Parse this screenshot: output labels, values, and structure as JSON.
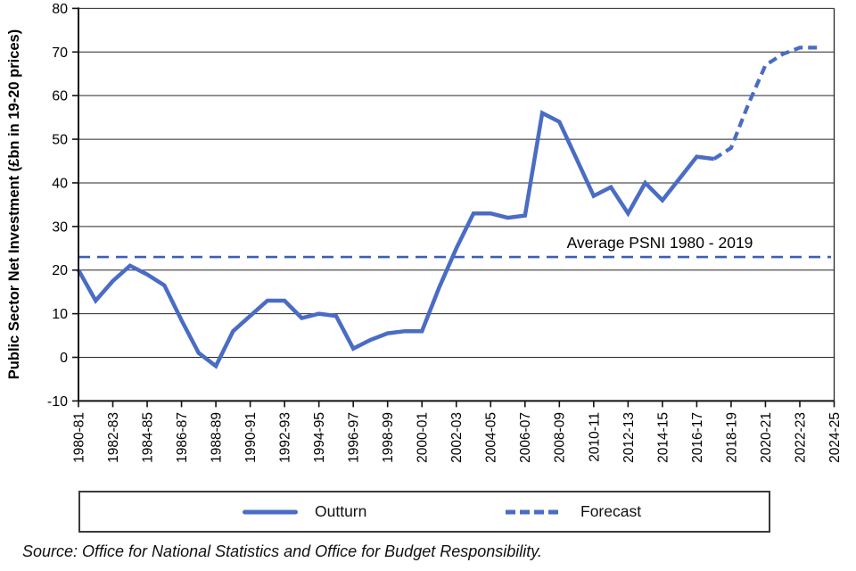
{
  "chart_data": {
    "type": "line",
    "title": "",
    "ylabel": "Public Sector Net Investment (£bn in 19-20 prices)",
    "ylim": [
      -10,
      80
    ],
    "ytick_step": 10,
    "grid": true,
    "legend_position": "bottom",
    "years": [
      "1980-81",
      "1981-82",
      "1982-83",
      "1983-84",
      "1984-85",
      "1985-86",
      "1986-87",
      "1987-88",
      "1988-89",
      "1989-90",
      "1990-91",
      "1991-92",
      "1992-93",
      "1993-94",
      "1994-95",
      "1995-96",
      "1996-97",
      "1997-98",
      "1998-99",
      "1999-00",
      "2000-01",
      "2001-02",
      "2002-03",
      "2003-04",
      "2004-05",
      "2005-06",
      "2006-07",
      "2007-08",
      "2008-09",
      "2009-10",
      "2010-11",
      "2011-12",
      "2012-13",
      "2013-14",
      "2014-15",
      "2015-16",
      "2016-17",
      "2017-18",
      "2018-19",
      "2019-20",
      "2020-21",
      "2021-22",
      "2022-23",
      "2023-24",
      "2024-25"
    ],
    "xtick_every": 2,
    "series": [
      {
        "name": "Outturn",
        "style": "solid",
        "start_year": "1980-81",
        "values": [
          20,
          13,
          17.5,
          21,
          19,
          16.5,
          8.5,
          1,
          -2,
          6,
          9.5,
          13,
          13,
          9,
          10,
          9.5,
          2,
          4,
          5.5,
          6,
          6,
          16,
          25,
          33,
          33,
          32,
          32.5,
          56,
          54,
          45.5,
          37,
          39,
          33,
          40,
          36,
          41,
          46,
          45.5
        ]
      },
      {
        "name": "Forecast",
        "style": "dashed",
        "start_year": "2017-18",
        "values": [
          45.5,
          48,
          58,
          67,
          69.5,
          71,
          71
        ]
      }
    ],
    "average_line": {
      "value": 23,
      "label": "Average PSNI 1980 - 2019",
      "style": "dashed"
    },
    "legend": {
      "outturn": "Outturn",
      "forecast": "Forecast"
    },
    "source": "Source: Office for National Statistics and Office for Budget Responsibility.",
    "colors": {
      "line": "#4a6cc4",
      "average": "#3c60b6",
      "grid": "#262626",
      "axis": "#111111",
      "text": "#000000"
    }
  }
}
